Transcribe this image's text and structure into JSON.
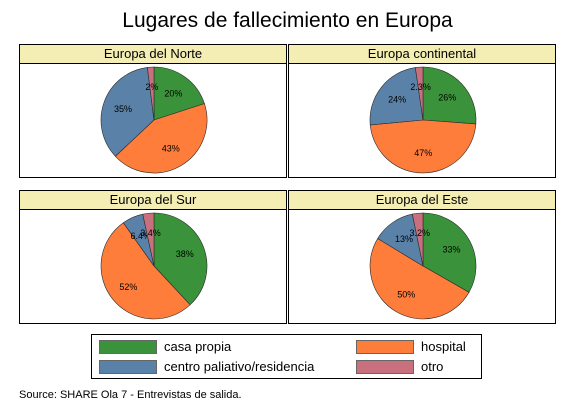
{
  "title": "Lugares de fallecimiento en Europa",
  "source": "Source: SHARE Ola 7 - Entrevistas de salida.",
  "colors": {
    "casa_propia": "#3a923a",
    "hospital": "#ff7d3b",
    "centro": "#5a82a8",
    "otro": "#c8707e",
    "header_bg": "#f4eeb4"
  },
  "legend": [
    {
      "key": "casa_propia",
      "label": "casa propia"
    },
    {
      "key": "hospital",
      "label": "hospital"
    },
    {
      "key": "centro",
      "label": "centro paliativo/residencia"
    },
    {
      "key": "otro",
      "label": "otro"
    }
  ],
  "chart_data": [
    {
      "type": "pie",
      "title": "Europa del Norte",
      "slices": [
        {
          "name": "casa propia",
          "value": 20,
          "label": "20%"
        },
        {
          "name": "hospital",
          "value": 43,
          "label": "43%"
        },
        {
          "name": "centro paliativo/residencia",
          "value": 35,
          "label": "35%"
        },
        {
          "name": "otro",
          "value": 2,
          "label": "2%"
        }
      ]
    },
    {
      "type": "pie",
      "title": "Europa continental",
      "slices": [
        {
          "name": "casa propia",
          "value": 26,
          "label": "26%"
        },
        {
          "name": "hospital",
          "value": 47,
          "label": "47%"
        },
        {
          "name": "centro paliativo/residencia",
          "value": 24,
          "label": "24%"
        },
        {
          "name": "otro",
          "value": 2.3,
          "label": "2.3%"
        }
      ]
    },
    {
      "type": "pie",
      "title": "Europa del Sur",
      "slices": [
        {
          "name": "casa propia",
          "value": 38,
          "label": "38%"
        },
        {
          "name": "hospital",
          "value": 52,
          "label": "52%"
        },
        {
          "name": "centro paliativo/residencia",
          "value": 6.4,
          "label": "6.4%"
        },
        {
          "name": "otro",
          "value": 3.4,
          "label": "3.4%"
        }
      ]
    },
    {
      "type": "pie",
      "title": "Europa del Este",
      "slices": [
        {
          "name": "casa propia",
          "value": 33,
          "label": "33%"
        },
        {
          "name": "hospital",
          "value": 50,
          "label": "50%"
        },
        {
          "name": "centro paliativo/residencia",
          "value": 13,
          "label": "13%"
        },
        {
          "name": "otro",
          "value": 3.2,
          "label": "3.2%"
        }
      ]
    }
  ]
}
